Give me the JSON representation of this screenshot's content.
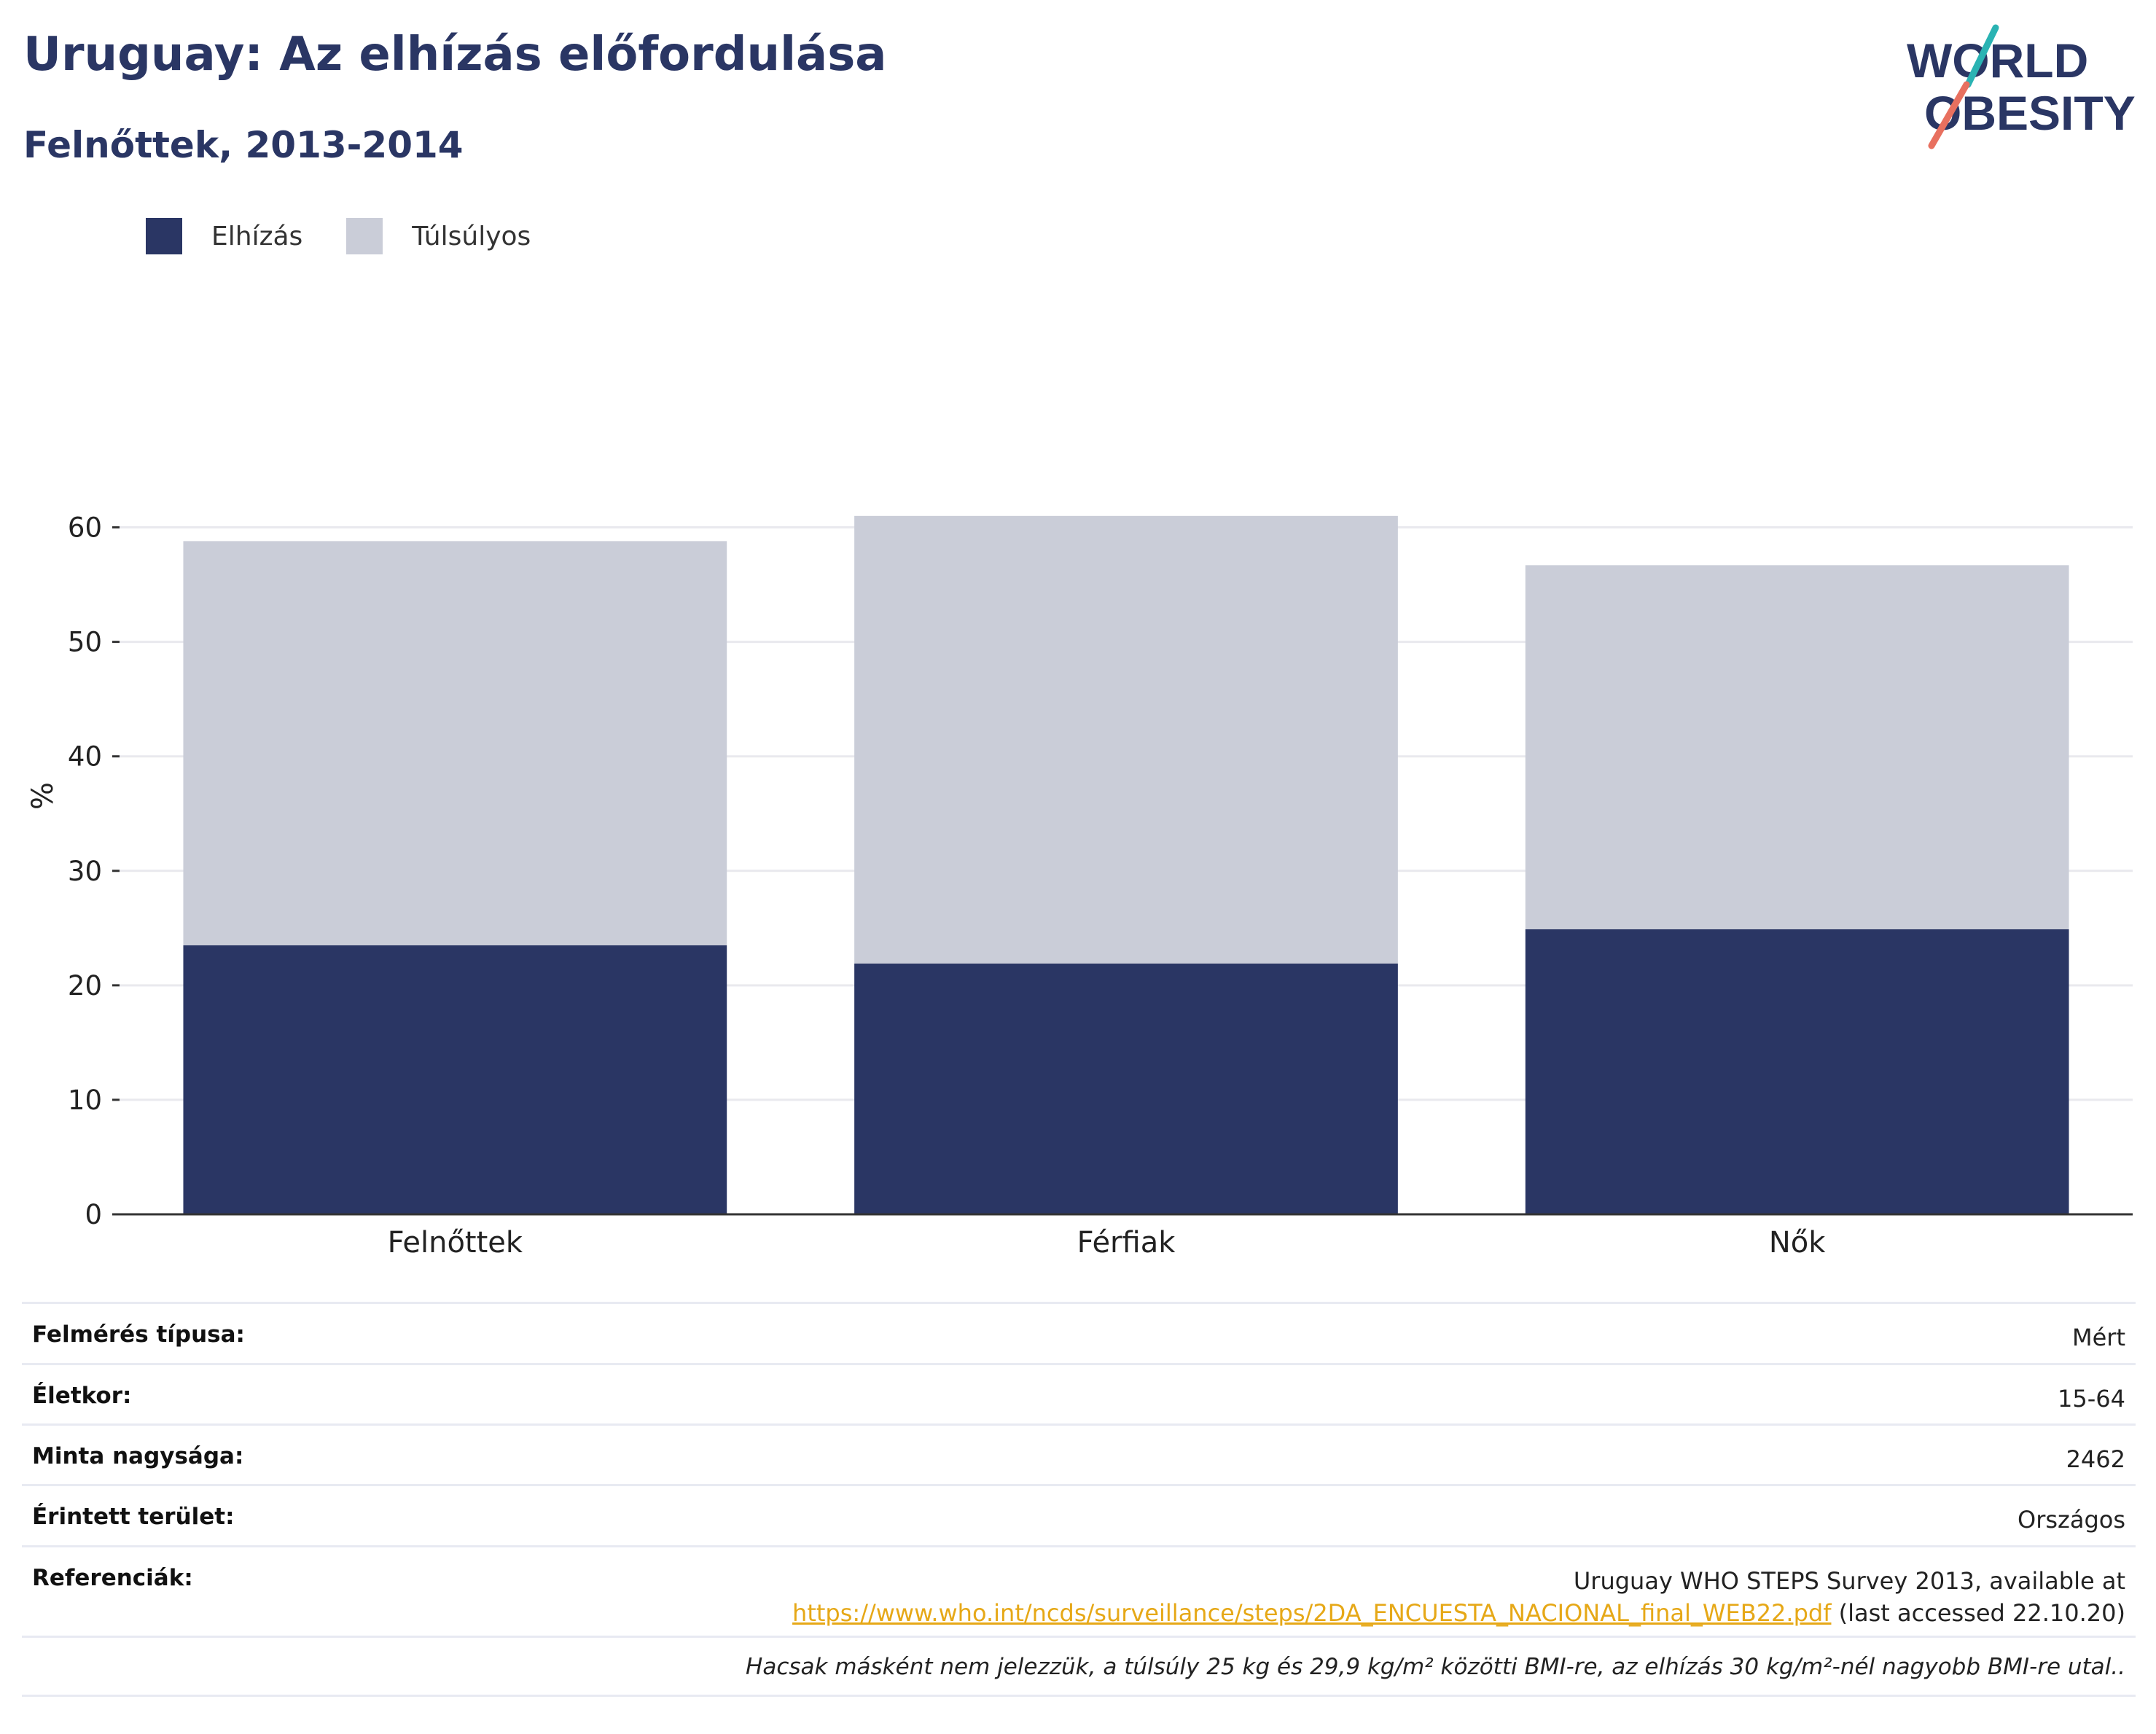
{
  "title": "Uruguay: Az elhízás előfordulása",
  "subtitle": "Felnőttek, 2013-2014",
  "logo": {
    "line1": "WORLD",
    "line2": "OBESITY"
  },
  "legend": [
    {
      "label": "Elhízás",
      "color": "#2a3664"
    },
    {
      "label": "Túlsúlyos",
      "color": "#cacdd8"
    }
  ],
  "chart_data": {
    "type": "bar",
    "stacked": true,
    "categories": [
      "Felnőttek",
      "Férfiak",
      "Nők"
    ],
    "series": [
      {
        "name": "Elhízás",
        "color": "#2a3664",
        "values": [
          23.5,
          21.9,
          24.9
        ]
      },
      {
        "name": "Túlsúlyos",
        "color": "#cacdd8",
        "values": [
          35.3,
          39.1,
          31.8
        ]
      }
    ],
    "ylabel": "%",
    "ylim": [
      0,
      65
    ],
    "yticks": [
      0,
      10,
      20,
      30,
      40,
      50,
      60
    ],
    "grid": true,
    "legend_position": "top-left"
  },
  "info": {
    "survey_type": {
      "key": "Felmérés típusa:",
      "value": "Mért"
    },
    "age": {
      "key": "Életkor:",
      "value": "15-64"
    },
    "sample": {
      "key": "Minta nagysága:",
      "value": "2462"
    },
    "area": {
      "key": "Érintett terület:",
      "value": "Országos"
    },
    "references": {
      "key": "Referenciák:",
      "line1": "Uruguay WHO STEPS Survey 2013, available at",
      "link": "https://www.who.int/ncds/surveillance/steps/2DA_ENCUESTA_NACIONAL_final_WEB22.pdf",
      "suffix": " (last accessed 22.10.20)"
    },
    "note": "Hacsak másként nem jelezzük, a túlsúly 25 kg és 29,9 kg/m² közötti BMI-re, az elhízás 30 kg/m²-nél nagyobb BMI-re utal.."
  }
}
